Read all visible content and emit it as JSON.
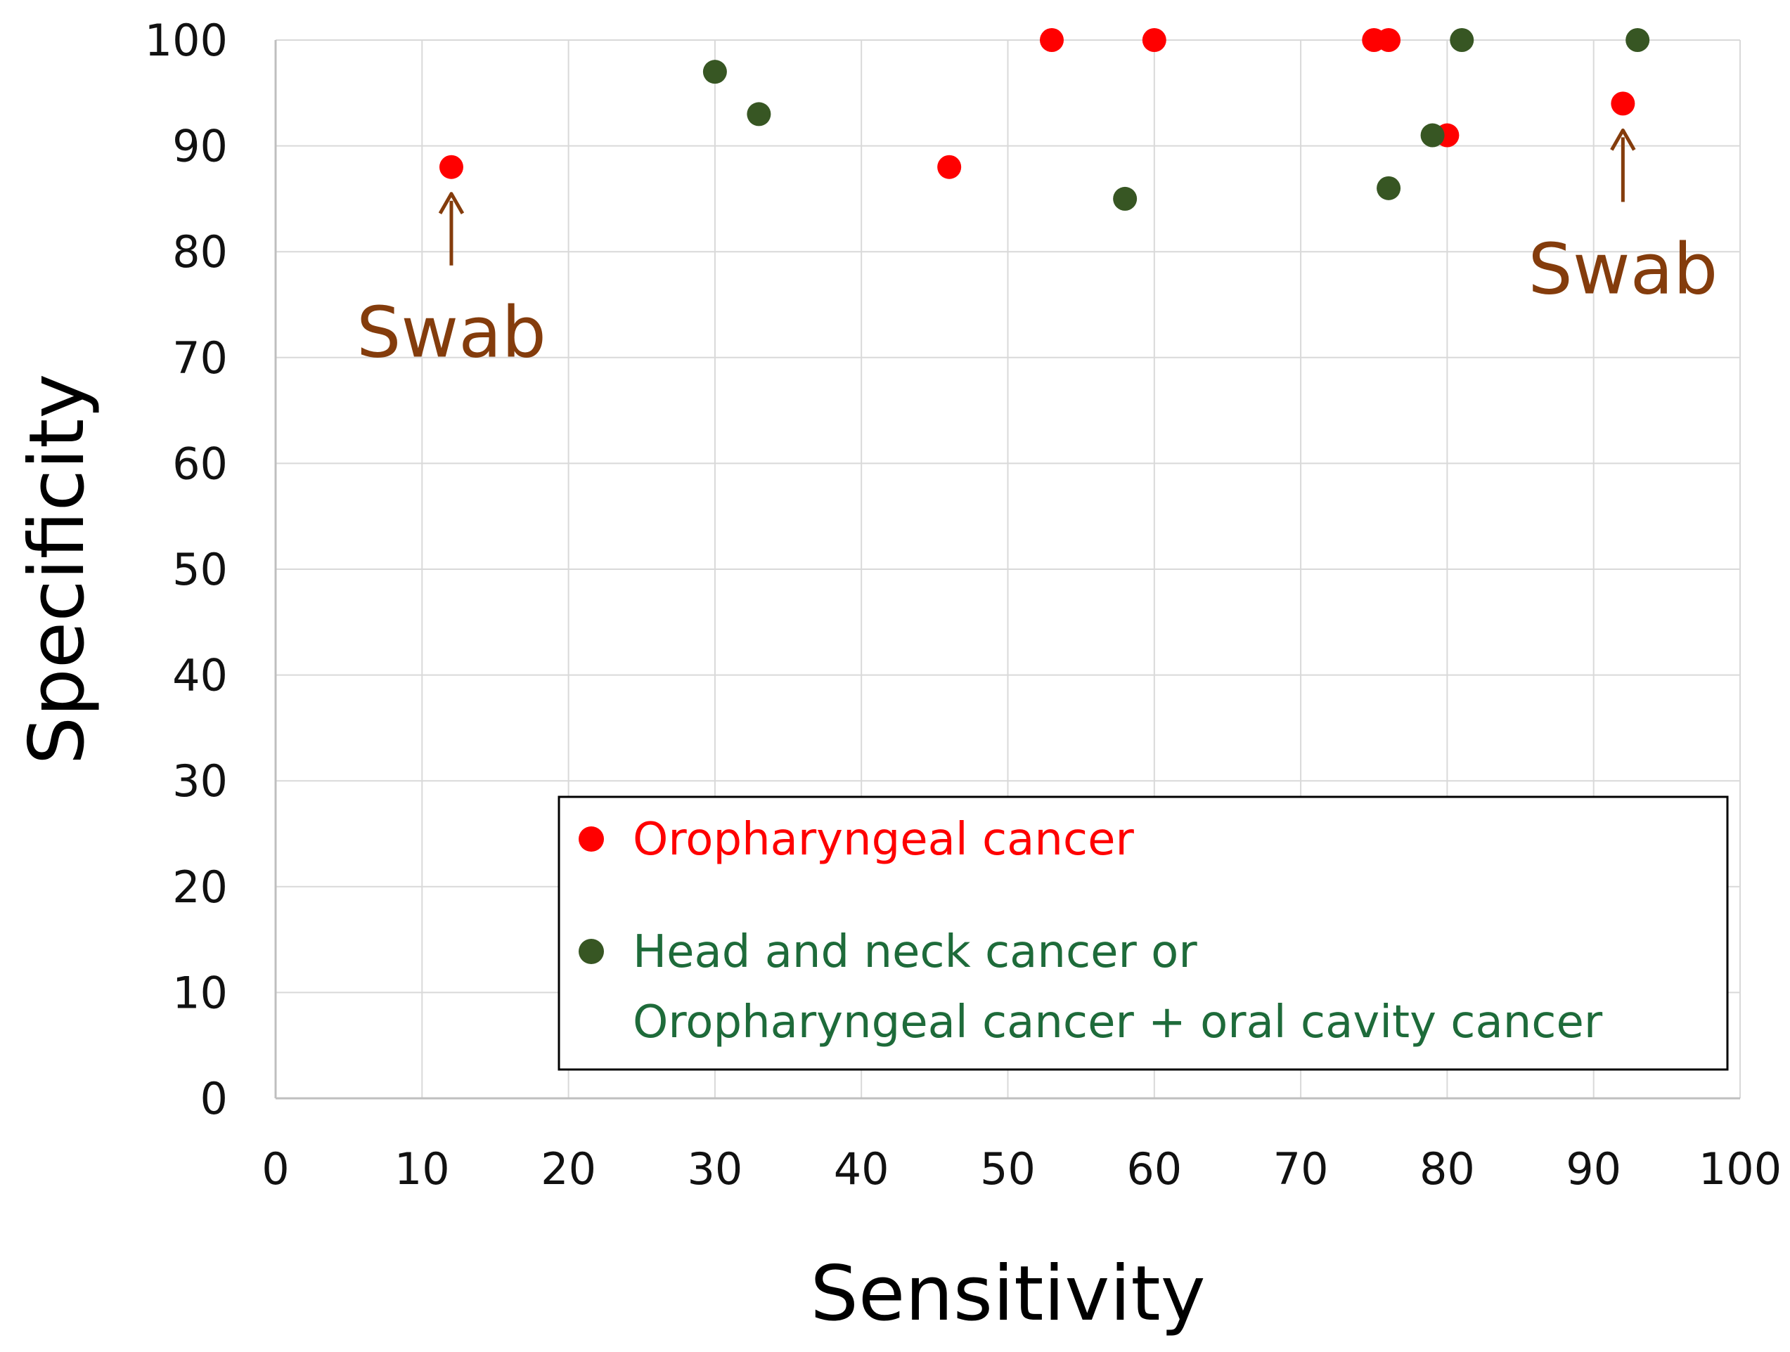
{
  "chart_data": {
    "type": "scatter",
    "title": "",
    "xlabel": "Sensitivity",
    "ylabel": "Specificity",
    "xlim": [
      0,
      100
    ],
    "ylim": [
      0,
      100
    ],
    "xticks": [
      0,
      10,
      20,
      30,
      40,
      50,
      60,
      70,
      80,
      90,
      100
    ],
    "yticks": [
      0,
      10,
      20,
      30,
      40,
      50,
      60,
      70,
      80,
      90,
      100
    ],
    "grid": true,
    "legend_position": "bottom-right",
    "series": [
      {
        "name": "Oropharyngeal cancer",
        "color": "#ff0000",
        "points": [
          {
            "x": 12,
            "y": 88
          },
          {
            "x": 46,
            "y": 88
          },
          {
            "x": 53,
            "y": 100
          },
          {
            "x": 60,
            "y": 100
          },
          {
            "x": 75,
            "y": 100
          },
          {
            "x": 76,
            "y": 100
          },
          {
            "x": 80,
            "y": 91
          },
          {
            "x": 92,
            "y": 94
          }
        ]
      },
      {
        "name": "Head and neck cancer or Oropharyngeal cancer + oral cavity cancer",
        "color": "#375623",
        "points": [
          {
            "x": 30,
            "y": 97
          },
          {
            "x": 33,
            "y": 93
          },
          {
            "x": 58,
            "y": 85
          },
          {
            "x": 76,
            "y": 86
          },
          {
            "x": 79,
            "y": 91
          },
          {
            "x": 81,
            "y": 100
          },
          {
            "x": 93,
            "y": 100
          }
        ]
      }
    ],
    "legend": {
      "entries": [
        {
          "lines": [
            "Oropharyngeal cancer"
          ],
          "color": "#ff0000",
          "text_color": "#ff0000"
        },
        {
          "lines": [
            "Head and neck cancer or",
            "Oropharyngeal cancer + oral cavity cancer"
          ],
          "color": "#375623",
          "text_color": "#1e6b3a"
        }
      ]
    },
    "annotations": [
      {
        "text": "Swab",
        "arrow": "↑",
        "target": {
          "x": 12,
          "y": 88
        },
        "label_side": "below",
        "color": "#843c0c"
      },
      {
        "text": "Swab",
        "arrow": "↑",
        "target": {
          "x": 92,
          "y": 94
        },
        "label_side": "below",
        "color": "#843c0c"
      }
    ]
  }
}
